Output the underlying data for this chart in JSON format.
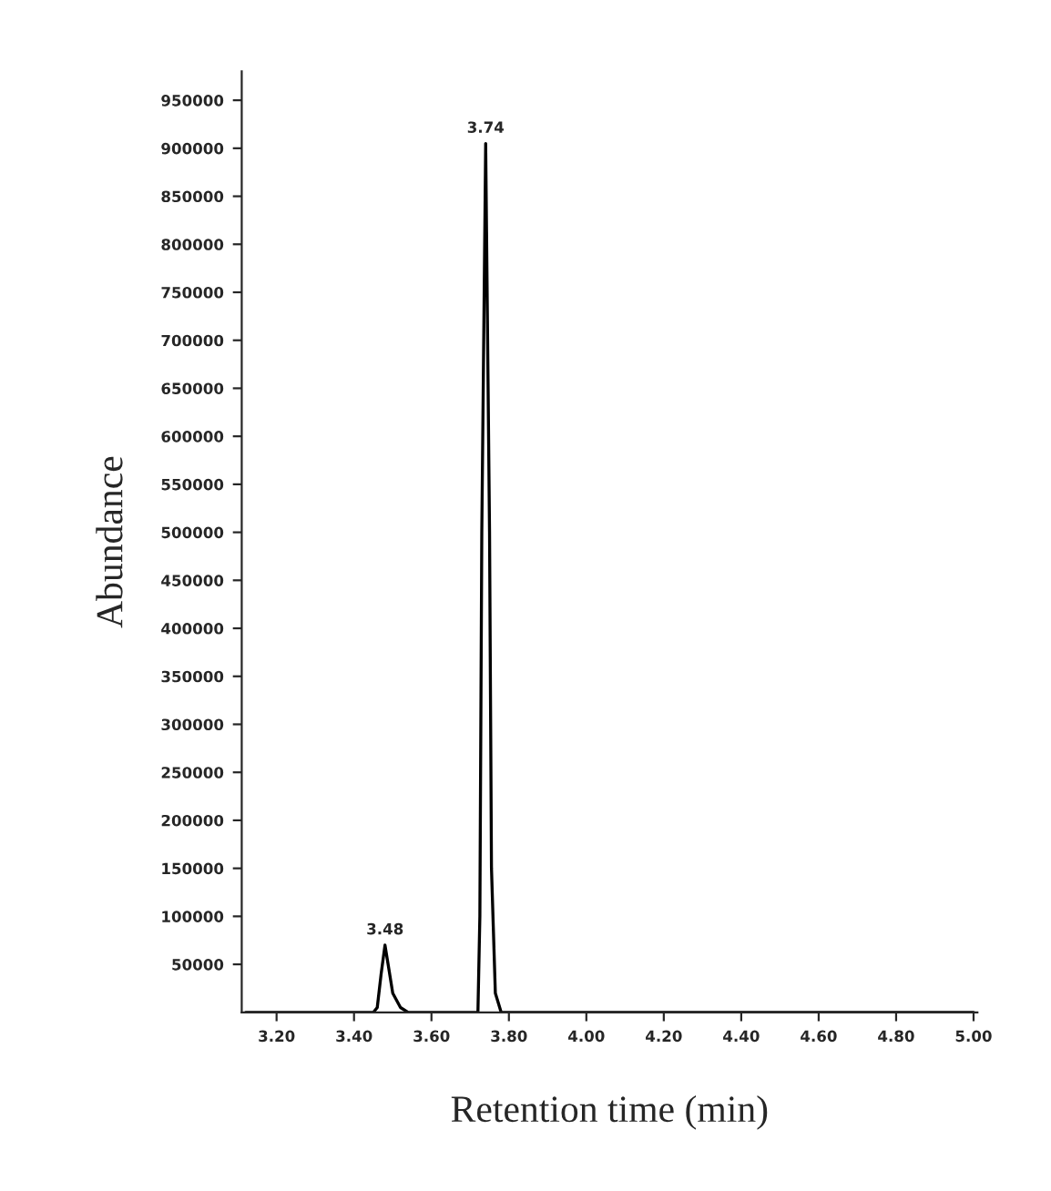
{
  "chart_data": {
    "type": "line",
    "xlabel": "Retention time (min)",
    "ylabel": "Abundance",
    "x": [
      3.12,
      3.45,
      3.46,
      3.47,
      3.48,
      3.49,
      3.5,
      3.52,
      3.54,
      3.72,
      3.725,
      3.73,
      3.74,
      3.75,
      3.755,
      3.765,
      3.78,
      5.0
    ],
    "series": [
      {
        "color": "#000000",
        "values": [
          0,
          0,
          5000,
          40000,
          70000,
          45000,
          20000,
          5000,
          0,
          0,
          100000,
          500000,
          905000,
          500000,
          150000,
          20000,
          0,
          0
        ]
      }
    ],
    "xlim": [
      3.11,
      5.01
    ],
    "xticks": [
      {
        "value": 3.2,
        "label": "3.20"
      },
      {
        "value": 3.4,
        "label": "3.40"
      },
      {
        "value": 3.6,
        "label": "3.60"
      },
      {
        "value": 3.8,
        "label": "3.80"
      },
      {
        "value": 4.0,
        "label": "4.00"
      },
      {
        "value": 4.2,
        "label": "4.20"
      },
      {
        "value": 4.4,
        "label": "4.40"
      },
      {
        "value": 4.6,
        "label": "4.60"
      },
      {
        "value": 4.8,
        "label": "4.80"
      },
      {
        "value": 5.0,
        "label": "5.00"
      }
    ],
    "ylim": [
      0,
      980000
    ],
    "yticks": [
      50000,
      100000,
      150000,
      200000,
      250000,
      300000,
      350000,
      400000,
      450000,
      500000,
      550000,
      600000,
      650000,
      700000,
      750000,
      800000,
      850000,
      900000,
      950000
    ],
    "annotations": [
      {
        "text": "3.48",
        "x": 3.48,
        "y": 70000
      },
      {
        "text": "3.74",
        "x": 3.74,
        "y": 905000
      }
    ],
    "grid": false,
    "legend": false,
    "marker": "none",
    "line_style": "solid"
  }
}
